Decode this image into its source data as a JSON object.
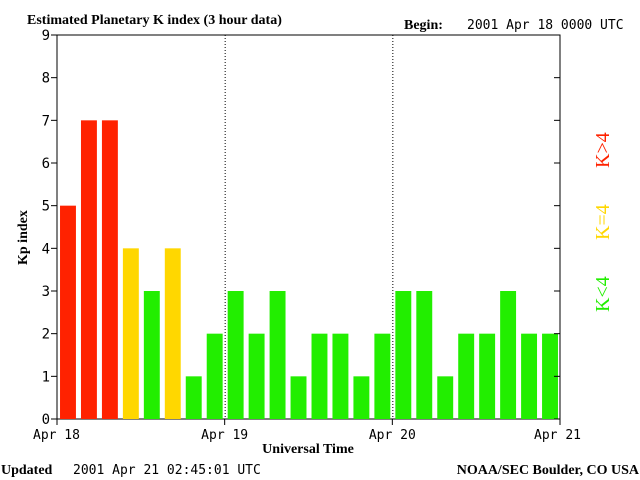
{
  "header": {
    "title": "Estimated Planetary K index (3 hour data)",
    "begin_label": "Begin:",
    "begin_value": "2001 Apr 18 0000 UTC"
  },
  "footer": {
    "updated_label": "Updated",
    "updated_value": "2001 Apr 21 02:45:01 UTC",
    "source": "NOAA/SEC Boulder, CO USA"
  },
  "legend": {
    "high": "K>4",
    "mid": "K=4",
    "low": "K<4"
  },
  "colors": {
    "high": "#ff2200",
    "mid": "#ffd700",
    "low": "#22ee00"
  },
  "chart_data": {
    "type": "bar",
    "ylabel": "Kp index",
    "xlabel": "Universal Time",
    "ylim": [
      0,
      9
    ],
    "yticks": [
      "0",
      "1",
      "2",
      "3",
      "4",
      "5",
      "6",
      "7",
      "8",
      "9"
    ],
    "xticks": [
      "Apr 18",
      "Apr 19",
      "Apr 20",
      "Apr 21"
    ],
    "day_separators_after_bar": [
      8,
      16
    ],
    "values": [
      5,
      7,
      7,
      4,
      3,
      4,
      1,
      2,
      3,
      2,
      3,
      1,
      2,
      2,
      1,
      2,
      3,
      3,
      1,
      2,
      2,
      3,
      2,
      2
    ]
  }
}
